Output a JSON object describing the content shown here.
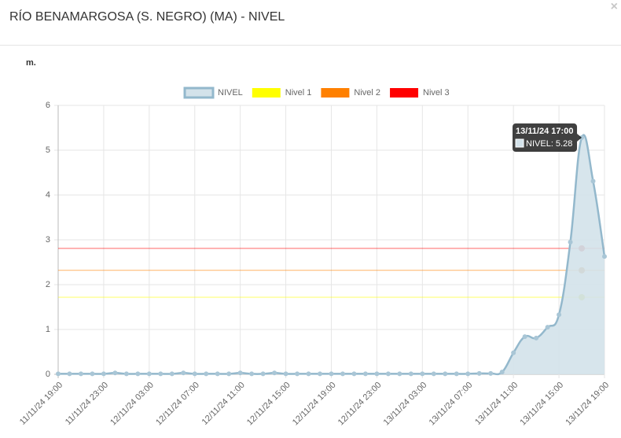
{
  "header": {
    "title": "RÍO BENAMARGOSA (S. NEGRO) (MA) - NIVEL",
    "close": "×"
  },
  "chart_data": {
    "type": "line",
    "y_label": "m.",
    "categories": [
      "11/11/24 19:00",
      null,
      null,
      null,
      "11/11/24 23:00",
      null,
      null,
      null,
      "12/11/24 03:00",
      null,
      null,
      null,
      "12/11/24 07:00",
      null,
      null,
      null,
      "12/11/24 11:00",
      null,
      null,
      null,
      "12/11/24 15:00",
      null,
      null,
      null,
      "12/11/24 19:00",
      null,
      null,
      null,
      "12/11/24 23:00",
      null,
      null,
      null,
      "13/11/24 03:00",
      null,
      null,
      null,
      "13/11/24 07:00",
      null,
      null,
      null,
      "13/11/24 11:00",
      null,
      null,
      null,
      "13/11/24 15:00",
      null,
      null,
      null,
      "13/11/24 19:00"
    ],
    "series": [
      {
        "name": "NIVEL",
        "color": "#93b8cc",
        "fill": "#d3e2ea",
        "points": true,
        "values": [
          0.01,
          0.01,
          0.01,
          0.01,
          0.01,
          0.03,
          0.01,
          0.01,
          0.01,
          0.01,
          0.01,
          0.03,
          0.01,
          0.01,
          0.01,
          0.01,
          0.03,
          0.01,
          0.01,
          0.03,
          0.01,
          0.01,
          0.01,
          0.01,
          0.01,
          0.01,
          0.01,
          0.01,
          0.01,
          0.01,
          0.01,
          0.01,
          0.01,
          0.01,
          0.01,
          0.01,
          0.01,
          0.02,
          0.02,
          0.05,
          0.48,
          0.84,
          0.81,
          1.05,
          1.33,
          2.95,
          5.28,
          4.31,
          2.63
        ]
      },
      {
        "name": "Nivel 1",
        "color": "#ffff00",
        "hover": "#c8d23c",
        "points": false,
        "values": [
          1.72,
          1.72,
          1.72,
          1.72,
          1.72,
          1.72,
          1.72,
          1.72,
          1.72,
          1.72,
          1.72,
          1.72,
          1.72,
          1.72,
          1.72,
          1.72,
          1.72,
          1.72,
          1.72,
          1.72,
          1.72,
          1.72,
          1.72,
          1.72,
          1.72,
          1.72,
          1.72,
          1.72,
          1.72,
          1.72,
          1.72,
          1.72,
          1.72,
          1.72,
          1.72,
          1.72,
          1.72,
          1.72,
          1.72,
          1.72,
          1.72,
          1.72,
          1.72,
          1.72,
          1.72,
          1.72,
          1.72,
          1.72,
          1.72
        ]
      },
      {
        "name": "Nivel 2",
        "color": "#ff8000",
        "hover": "#c8823c",
        "points": false,
        "values": [
          2.32,
          2.32,
          2.32,
          2.32,
          2.32,
          2.32,
          2.32,
          2.32,
          2.32,
          2.32,
          2.32,
          2.32,
          2.32,
          2.32,
          2.32,
          2.32,
          2.32,
          2.32,
          2.32,
          2.32,
          2.32,
          2.32,
          2.32,
          2.32,
          2.32,
          2.32,
          2.32,
          2.32,
          2.32,
          2.32,
          2.32,
          2.32,
          2.32,
          2.32,
          2.32,
          2.32,
          2.32,
          2.32,
          2.32,
          2.32,
          2.32,
          2.32,
          2.32,
          2.32,
          2.32,
          2.32,
          2.32,
          2.32,
          2.32
        ]
      },
      {
        "name": "Nivel 3",
        "color": "#ff0000",
        "hover": "#c83c3c",
        "points": false,
        "values": [
          2.81,
          2.81,
          2.81,
          2.81,
          2.81,
          2.81,
          2.81,
          2.81,
          2.81,
          2.81,
          2.81,
          2.81,
          2.81,
          2.81,
          2.81,
          2.81,
          2.81,
          2.81,
          2.81,
          2.81,
          2.81,
          2.81,
          2.81,
          2.81,
          2.81,
          2.81,
          2.81,
          2.81,
          2.81,
          2.81,
          2.81,
          2.81,
          2.81,
          2.81,
          2.81,
          2.81,
          2.81,
          2.81,
          2.81,
          2.81,
          2.81,
          2.81,
          2.81,
          2.81,
          2.81,
          2.81,
          2.81,
          2.81,
          2.81
        ]
      }
    ],
    "ylim": [
      0,
      6
    ],
    "yticks": [
      0,
      1,
      2,
      3,
      4,
      5,
      6
    ],
    "grid": true,
    "legend": "top",
    "tooltip": {
      "index": 46,
      "title": "13/11/24 17:00",
      "label": "NIVEL: 5.28"
    }
  }
}
